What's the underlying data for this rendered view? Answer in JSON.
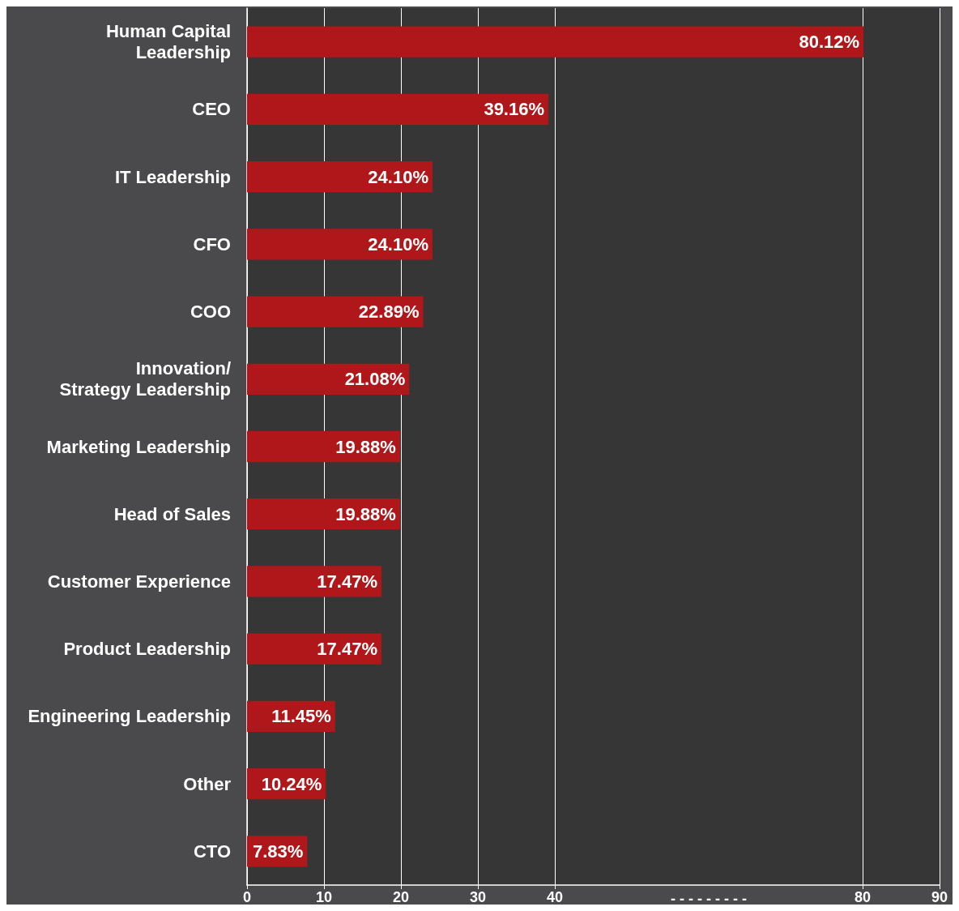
{
  "chart_data": {
    "type": "bar",
    "orientation": "horizontal",
    "categories": [
      "Human Capital\nLeadership",
      "CEO",
      "IT Leadership",
      "CFO",
      "COO",
      "Innovation/\nStrategy Leadership",
      "Marketing Leadership",
      "Head of Sales",
      "Customer Experience",
      "Product Leadership",
      "Engineering Leadership",
      "Other",
      "CTO"
    ],
    "values": [
      80.12,
      39.16,
      24.1,
      24.1,
      22.89,
      21.08,
      19.88,
      19.88,
      17.47,
      17.47,
      11.45,
      10.24,
      7.83
    ],
    "value_labels": [
      "80.12%",
      "39.16%",
      "24.10%",
      "24.10%",
      "22.89%",
      "21.08%",
      "19.88%",
      "19.88%",
      "17.47%",
      "17.47%",
      "11.45%",
      "10.24%",
      "7.83%"
    ],
    "color": "#b0171a",
    "xlim": [
      0,
      90
    ],
    "xticks": [
      0,
      10,
      20,
      30,
      40,
      80,
      90
    ],
    "annotations": [
      "- - - - - - - - -"
    ],
    "grid": "x"
  }
}
